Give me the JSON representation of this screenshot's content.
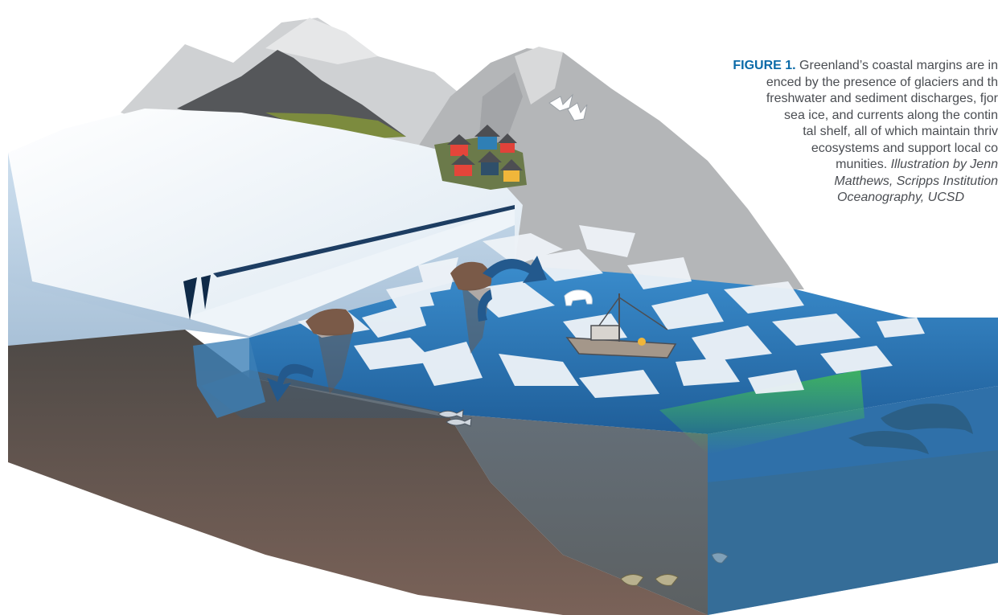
{
  "caption": {
    "label": "FIGURE 1.",
    "lines": [
      " Greenland’s coastal margins are in",
      "enced by the presence of glaciers and th",
      "freshwater and sediment discharges, fjor",
      "sea ice, and currents along the contin",
      "tal shelf, all of which maintain thriv",
      "ecosystems and support local co",
      "munities."
    ],
    "credit_inline": " Illustration by Jenn",
    "credit_lines": [
      "Matthews, Scripps Institution",
      "Oceanography, UCSD"
    ]
  },
  "colors": {
    "caption_label": "#0a6aa8",
    "caption_text": "#4a4d52",
    "ocean": "#2e78b8",
    "glacier": "#e8f0f7",
    "seafloor": "#4e4a47",
    "mountain": "#b4b6b8",
    "dark_peak": "#55575a",
    "plankton": "#3fb75a"
  },
  "scene": {
    "elements": [
      "mountains",
      "dark-peak",
      "glacier",
      "sea-ice",
      "village",
      "boat",
      "polar-bear",
      "seabirds",
      "whale",
      "fish",
      "flatfish",
      "sediment-plumes",
      "current-arrows",
      "phytoplankton-bloom",
      "seafloor"
    ]
  }
}
